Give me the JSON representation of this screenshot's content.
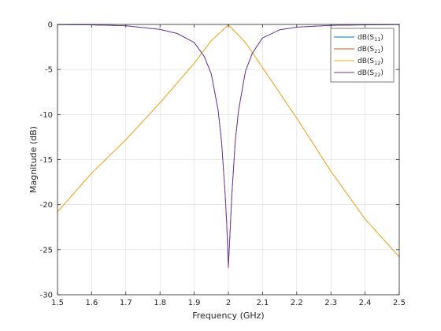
{
  "chart_data": {
    "type": "line",
    "xlabel": "Frequency (GHz)",
    "ylabel": "Magnitude (dB)",
    "xlim": [
      1.5,
      2.5
    ],
    "ylim": [
      -30,
      0
    ],
    "x_ticks": [
      "1.5",
      "1.6",
      "1.7",
      "1.8",
      "1.9",
      "2",
      "2.1",
      "2.2",
      "2.3",
      "2.4",
      "2.5"
    ],
    "y_ticks": [
      "0",
      "-5",
      "-10",
      "-15",
      "-20",
      "-25",
      "-30"
    ],
    "grid": true,
    "legend_position": "top-right",
    "colors": {
      "S11": "#0072bd",
      "S21": "#d95319",
      "S12": "#edb120",
      "S22": "#7e2f8e"
    },
    "series": [
      {
        "name": "dB(S11)",
        "x": [
          1.5,
          1.6,
          1.7,
          1.8,
          1.85,
          1.9,
          1.93,
          1.95,
          1.97,
          1.98,
          1.99,
          1.995,
          2.0,
          2.005,
          2.01,
          2.02,
          2.03,
          2.05,
          2.07,
          2.1,
          2.15,
          2.2,
          2.3,
          2.4,
          2.5
        ],
        "y": [
          -0.02,
          -0.05,
          -0.15,
          -0.55,
          -1.0,
          -2.0,
          -3.6,
          -5.5,
          -9.5,
          -13.0,
          -18.5,
          -22.0,
          -26.8,
          -23.0,
          -19.0,
          -13.0,
          -9.5,
          -5.2,
          -3.2,
          -1.5,
          -0.6,
          -0.3,
          -0.1,
          -0.05,
          -0.02
        ]
      },
      {
        "name": "dB(S21)",
        "x": [
          1.5,
          1.6,
          1.7,
          1.8,
          1.9,
          1.95,
          2.0,
          2.05,
          2.1,
          2.2,
          2.3,
          2.4,
          2.5
        ],
        "y": [
          -20.8,
          -16.5,
          -12.8,
          -8.7,
          -4.3,
          -1.8,
          -0.05,
          -2.0,
          -4.8,
          -10.4,
          -16.3,
          -21.6,
          -25.8
        ]
      },
      {
        "name": "dB(S12)",
        "x": [
          1.5,
          1.6,
          1.7,
          1.8,
          1.9,
          1.95,
          2.0,
          2.05,
          2.1,
          2.2,
          2.3,
          2.4,
          2.5
        ],
        "y": [
          -20.8,
          -16.5,
          -12.8,
          -8.7,
          -4.3,
          -1.8,
          -0.05,
          -2.0,
          -4.8,
          -10.4,
          -16.3,
          -21.6,
          -25.8
        ]
      },
      {
        "name": "dB(S22)",
        "x": [
          1.5,
          1.6,
          1.7,
          1.8,
          1.85,
          1.9,
          1.93,
          1.95,
          1.97,
          1.98,
          1.99,
          1.995,
          2.0,
          2.005,
          2.01,
          2.02,
          2.03,
          2.05,
          2.07,
          2.1,
          2.15,
          2.2,
          2.3,
          2.4,
          2.5
        ],
        "y": [
          -0.02,
          -0.05,
          -0.15,
          -0.55,
          -1.0,
          -2.0,
          -3.6,
          -5.5,
          -9.5,
          -13.0,
          -18.5,
          -22.0,
          -27.0,
          -23.0,
          -19.0,
          -13.0,
          -9.5,
          -5.2,
          -3.2,
          -1.5,
          -0.6,
          -0.3,
          -0.1,
          -0.05,
          -0.02
        ]
      }
    ],
    "legend": [
      {
        "base": "dB(S",
        "sub": "11",
        "tail": ")"
      },
      {
        "base": "dB(S",
        "sub": "21",
        "tail": ")"
      },
      {
        "base": "dB(S",
        "sub": "12",
        "tail": ")"
      },
      {
        "base": "dB(S",
        "sub": "22",
        "tail": ")"
      }
    ]
  }
}
